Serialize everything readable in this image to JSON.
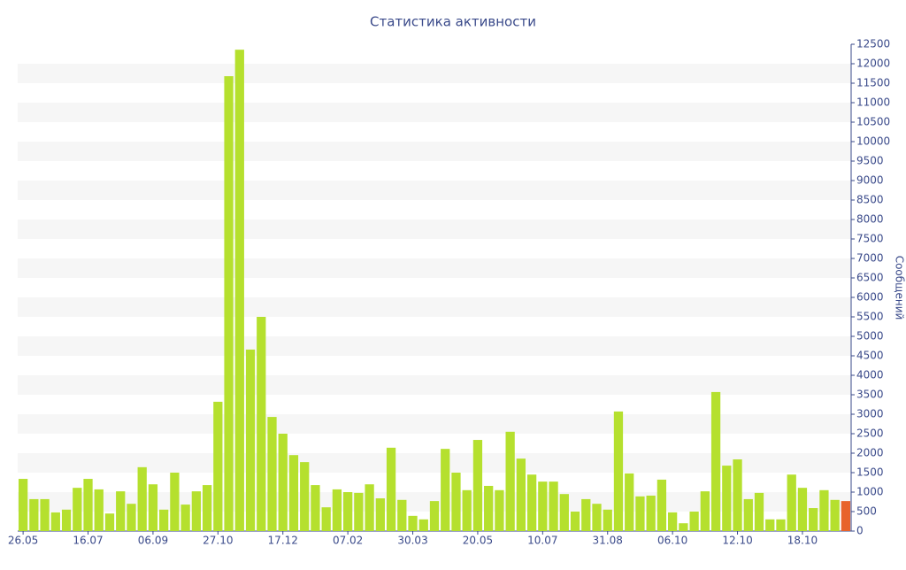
{
  "chart_data": {
    "type": "bar",
    "title": "Статистика активности",
    "y_axis_label": "Сообщений",
    "categories": [
      "26.05",
      null,
      null,
      null,
      null,
      null,
      "16.07",
      null,
      null,
      null,
      null,
      null,
      "06.09",
      null,
      null,
      null,
      null,
      null,
      "27.10",
      null,
      null,
      null,
      null,
      null,
      "17.12",
      null,
      null,
      null,
      null,
      null,
      "07.02",
      null,
      null,
      null,
      null,
      null,
      "30.03",
      null,
      null,
      null,
      null,
      null,
      "20.05",
      null,
      null,
      null,
      null,
      null,
      "10.07",
      null,
      null,
      null,
      null,
      null,
      "31.08",
      null,
      null,
      null,
      null,
      null,
      "06.10",
      null,
      null,
      null,
      null,
      null,
      "12.10",
      null,
      null,
      null,
      null,
      null,
      "18.10",
      null,
      null,
      null,
      null
    ],
    "values": [
      1340,
      820,
      820,
      480,
      550,
      1110,
      1340,
      1070,
      450,
      1020,
      700,
      1640,
      1200,
      550,
      1500,
      680,
      1020,
      1180,
      3320,
      11680,
      12360,
      4660,
      5500,
      2930,
      2500,
      1950,
      1770,
      1180,
      610,
      1070,
      1000,
      980,
      1200,
      840,
      2140,
      800,
      390,
      300,
      770,
      2110,
      1500,
      1050,
      2340,
      1160,
      1050,
      2550,
      1860,
      1450,
      1270,
      1270,
      950,
      500,
      820,
      700,
      550,
      3070,
      1480,
      890,
      910,
      1320,
      480,
      200,
      500,
      1020,
      3570,
      1680,
      1840,
      820,
      980,
      300,
      300,
      1450,
      1110,
      590,
      1050,
      800,
      770
    ],
    "color": "#b5e02e",
    "highlight": {
      "index": 76,
      "color": "#e8632b"
    },
    "ylim": [
      0,
      12500
    ],
    "yticks": [
      0,
      500,
      1000,
      1500,
      2000,
      2500,
      3000,
      3500,
      4000,
      4500,
      5000,
      5500,
      6000,
      6500,
      7000,
      7500,
      8000,
      8500,
      9000,
      9500,
      10000,
      10500,
      11000,
      11500,
      12000,
      12500
    ],
    "y_axis_side": "right",
    "striped_grid": true
  }
}
